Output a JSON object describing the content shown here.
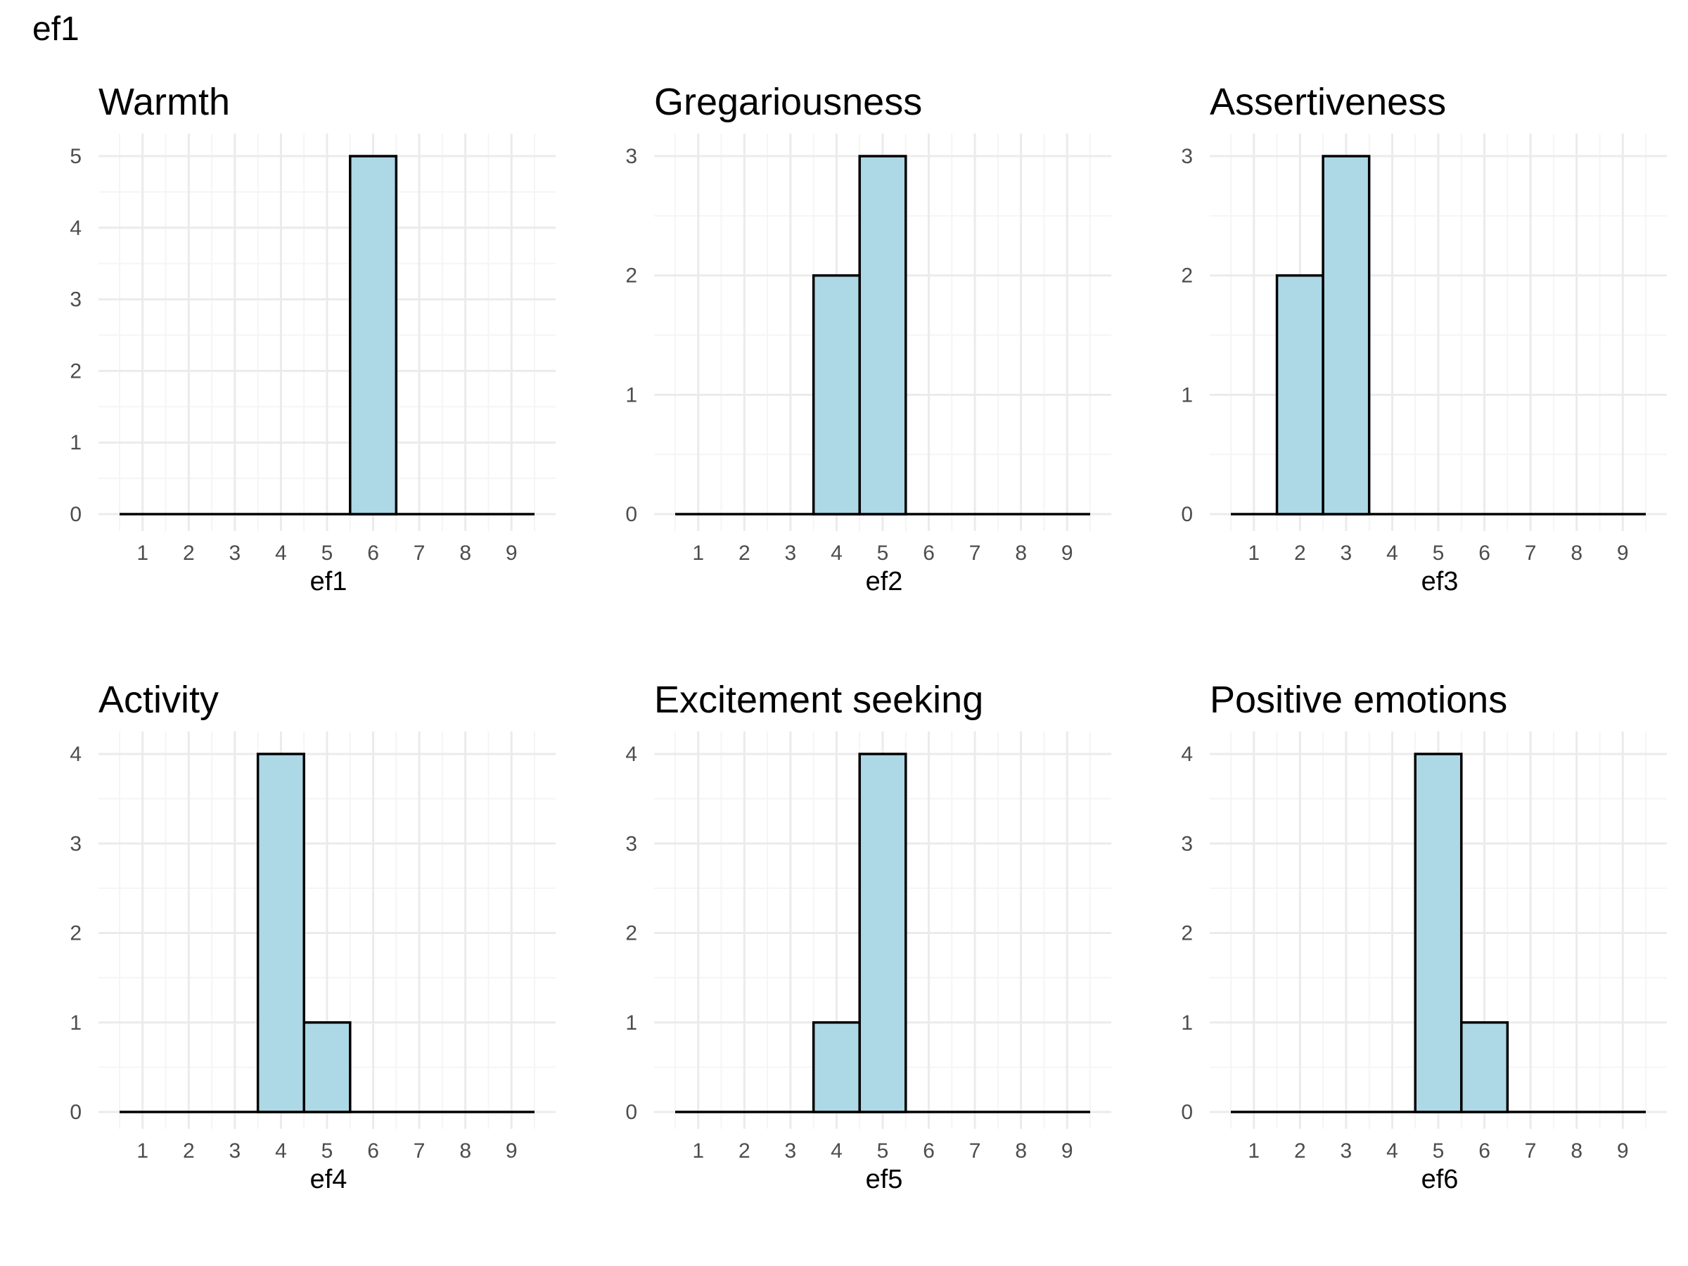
{
  "title": "ef1",
  "chart_data": [
    {
      "type": "bar",
      "title": "Warmth",
      "xlabel": "ef1",
      "ylabel": "",
      "xticks": [
        1,
        2,
        3,
        4,
        5,
        6,
        7,
        8,
        9
      ],
      "ylim": [
        0,
        5
      ],
      "yticks": [
        0,
        1,
        2,
        3,
        4,
        5
      ],
      "bins": [
        {
          "x": 6,
          "count": 5
        }
      ]
    },
    {
      "type": "bar",
      "title": "Gregariousness",
      "xlabel": "ef2",
      "ylabel": "",
      "xticks": [
        1,
        2,
        3,
        4,
        5,
        6,
        7,
        8,
        9
      ],
      "ylim": [
        0,
        3
      ],
      "yticks": [
        0,
        1,
        2,
        3
      ],
      "bins": [
        {
          "x": 4,
          "count": 2
        },
        {
          "x": 5,
          "count": 3
        }
      ]
    },
    {
      "type": "bar",
      "title": "Assertiveness",
      "xlabel": "ef3",
      "ylabel": "",
      "xticks": [
        1,
        2,
        3,
        4,
        5,
        6,
        7,
        8,
        9
      ],
      "ylim": [
        0,
        3
      ],
      "yticks": [
        0,
        1,
        2,
        3
      ],
      "bins": [
        {
          "x": 2,
          "count": 2
        },
        {
          "x": 3,
          "count": 3
        }
      ]
    },
    {
      "type": "bar",
      "title": "Activity",
      "xlabel": "ef4",
      "ylabel": "",
      "xticks": [
        1,
        2,
        3,
        4,
        5,
        6,
        7,
        8,
        9
      ],
      "ylim": [
        0,
        4
      ],
      "yticks": [
        0,
        1,
        2,
        3,
        4
      ],
      "bins": [
        {
          "x": 4,
          "count": 4
        },
        {
          "x": 5,
          "count": 1
        }
      ]
    },
    {
      "type": "bar",
      "title": "Excitement seeking",
      "xlabel": "ef5",
      "ylabel": "",
      "xticks": [
        1,
        2,
        3,
        4,
        5,
        6,
        7,
        8,
        9
      ],
      "ylim": [
        0,
        4
      ],
      "yticks": [
        0,
        1,
        2,
        3,
        4
      ],
      "bins": [
        {
          "x": 4,
          "count": 1
        },
        {
          "x": 5,
          "count": 4
        }
      ]
    },
    {
      "type": "bar",
      "title": "Positive emotions",
      "xlabel": "ef6",
      "ylabel": "",
      "xticks": [
        1,
        2,
        3,
        4,
        5,
        6,
        7,
        8,
        9
      ],
      "ylim": [
        0,
        4
      ],
      "yticks": [
        0,
        1,
        2,
        3,
        4
      ],
      "bins": [
        {
          "x": 5,
          "count": 4
        },
        {
          "x": 6,
          "count": 1
        }
      ]
    }
  ],
  "colors": {
    "bar_fill": "#add8e6",
    "bar_stroke": "#000000",
    "grid_major": "#ebebeb",
    "grid_minor": "#f5f5f5",
    "tick_text": "#4d4d4d"
  }
}
